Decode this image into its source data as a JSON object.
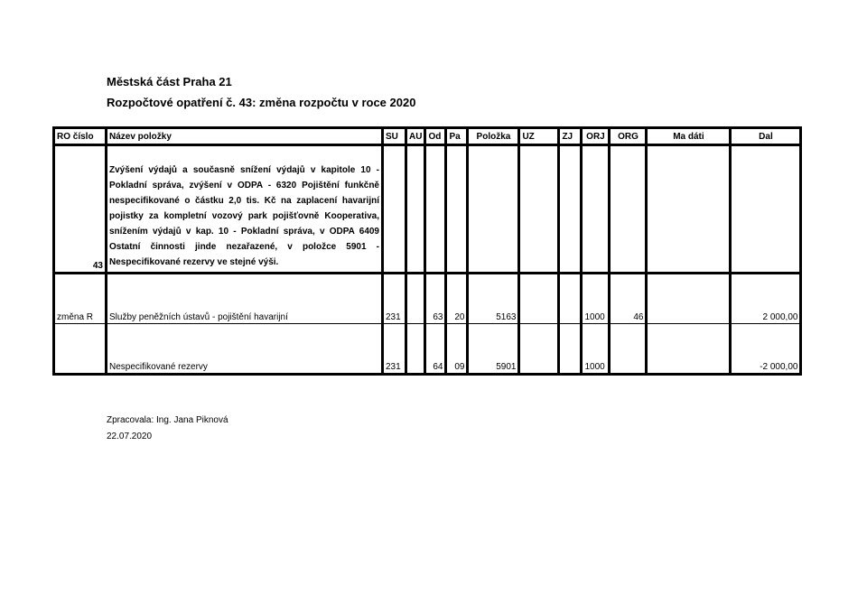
{
  "header": {
    "line1": "Městská část Praha 21",
    "line2": "Rozpočtové opatření č. 43: změna rozpočtu v roce 2020"
  },
  "table": {
    "columns": [
      "RO číslo",
      "Název položky",
      "SU",
      "AU",
      "Od",
      "Pa",
      "Položka",
      "UZ",
      "ZJ",
      "ORJ",
      "ORG",
      "Ma dáti",
      "Dal"
    ],
    "rows": [
      {
        "ro": "43",
        "nazev": "Zvýšení výdajů a současně snížení výdajů v kapitole 10 - Pokladní správa, zvýšení v ODPA - 6320 Pojištění funkčně nespecifikované o částku 2,0 tis. Kč na zaplacení havarijní pojistky za kompletní vozový park pojišťovně Kooperativa, snížením výdajů v kap. 10 - Pokladní správa, v ODPA 6409 Ostatní činnosti jinde nezařazené, v položce 5901 - Nespecifikované rezervy ve stejné výši.",
        "su": "",
        "au": "",
        "od": "",
        "pa": "",
        "polozka": "",
        "uz": "",
        "zj": "",
        "orj": "",
        "org": "",
        "ma_dati": "",
        "dal": ""
      },
      {
        "ro": "změna R",
        "nazev": "Služby peněžních ústavů - pojištění havarijní",
        "su": "231",
        "au": "",
        "od": "63",
        "pa": "20",
        "polozka": "5163",
        "uz": "",
        "zj": "",
        "orj": "1000",
        "org": "46",
        "ma_dati": "",
        "dal": "2 000,00"
      },
      {
        "ro": "",
        "nazev": "Nespecifikované rezervy",
        "su": "231",
        "au": "",
        "od": "64",
        "pa": "09",
        "polozka": "5901",
        "uz": "",
        "zj": "",
        "orj": "1000",
        "org": "",
        "ma_dati": "",
        "dal": "-2 000,00"
      }
    ]
  },
  "footer": {
    "prepared_by": "Zpracovala: Ing. Jana Piknová",
    "date": "22.07.2020"
  }
}
